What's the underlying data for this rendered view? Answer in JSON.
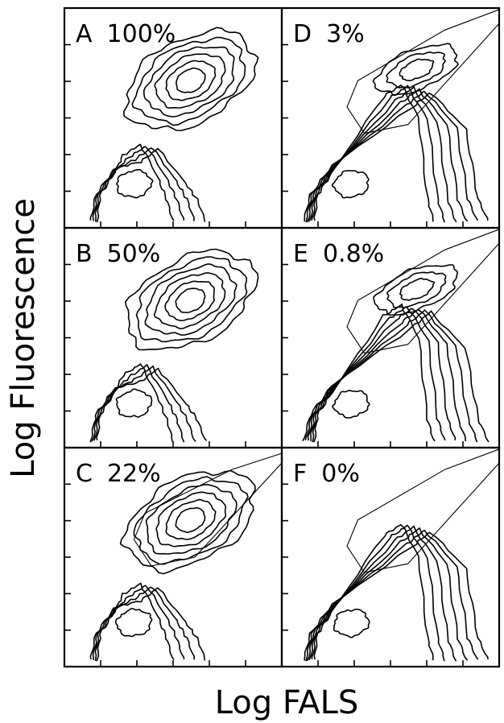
{
  "chart_data": {
    "type": "contour",
    "layout": "3x2 grid of flow-cytometry contour plots",
    "xlabel": "Log FALS",
    "ylabel": "Log Fluorescence",
    "grid": false,
    "panels": [
      {
        "id": "A",
        "percent": "100%",
        "gated_population": "high",
        "gate": false
      },
      {
        "id": "B",
        "percent": "50%",
        "gated_population": "high",
        "gate": false
      },
      {
        "id": "C",
        "percent": "22%",
        "gated_population": "high",
        "gate": true
      },
      {
        "id": "D",
        "percent": "3%",
        "gated_population": "low",
        "gate": true
      },
      {
        "id": "E",
        "percent": "0.8%",
        "gated_population": "low",
        "gate": true
      },
      {
        "id": "F",
        "percent": "0%",
        "gated_population": "none",
        "gate": true
      }
    ]
  }
}
